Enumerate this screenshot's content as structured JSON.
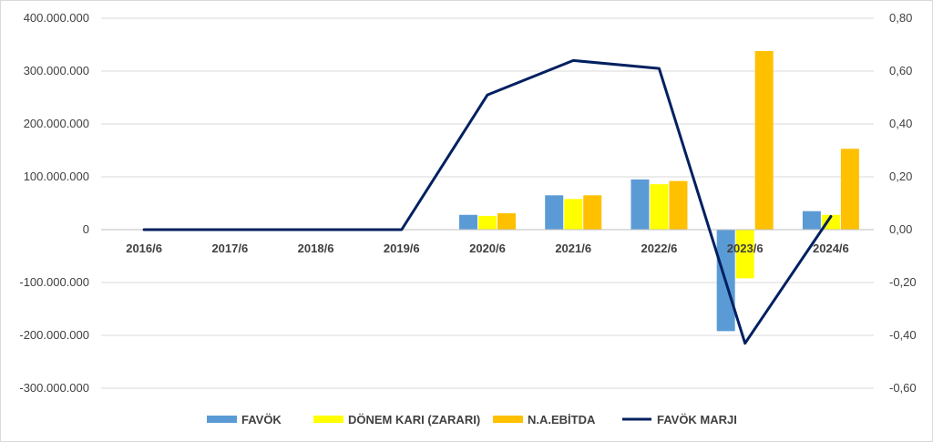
{
  "chart_data": {
    "type": "bar",
    "categories": [
      "2016/6",
      "2017/6",
      "2018/6",
      "2019/6",
      "2020/6",
      "2021/6",
      "2022/6",
      "2023/6",
      "2024/6"
    ],
    "series": [
      {
        "name": "FAVÖK",
        "type": "bar",
        "color": "#5B9BD5",
        "axis": "left",
        "values": [
          0,
          0,
          0,
          0,
          28000000,
          65000000,
          95000000,
          -192000000,
          35000000
        ]
      },
      {
        "name": "DÖNEM KARI (ZARARI)",
        "type": "bar",
        "color": "#FFFF00",
        "axis": "left",
        "values": [
          0,
          0,
          0,
          0,
          26000000,
          58000000,
          86000000,
          -92000000,
          28000000
        ]
      },
      {
        "name": "N.A.EBİTDA",
        "type": "bar",
        "color": "#FFC000",
        "axis": "left",
        "values": [
          0,
          0,
          0,
          0,
          31000000,
          65000000,
          92000000,
          338000000,
          153000000
        ]
      },
      {
        "name": "FAVÖK MARJI",
        "type": "line",
        "color": "#002060",
        "axis": "right",
        "values": [
          0,
          0,
          0,
          0,
          0.51,
          0.64,
          0.61,
          -0.43,
          0.05
        ]
      }
    ],
    "left_axis": {
      "ylim": [
        -300000000,
        400000000
      ],
      "ticks": [
        400000000,
        300000000,
        200000000,
        100000000,
        0,
        -100000000,
        -200000000,
        -300000000
      ],
      "tick_labels": [
        "400.000.000",
        "300.000.000",
        "200.000.000",
        "100.000.000",
        "0",
        "-100.000.000",
        "-200.000.000",
        "-300.000.000"
      ]
    },
    "right_axis": {
      "ylim": [
        -0.6,
        0.8
      ],
      "ticks": [
        0.8,
        0.6,
        0.4,
        0.2,
        0,
        -0.2,
        -0.4,
        -0.6
      ],
      "tick_labels": [
        "0,80",
        "0,60",
        "0,40",
        "0,20",
        "0,00",
        "-0,20",
        "-0,40",
        "-0,60"
      ]
    },
    "grid": true,
    "legend_position": "bottom",
    "title": "",
    "xlabel": "",
    "ylabel": ""
  }
}
